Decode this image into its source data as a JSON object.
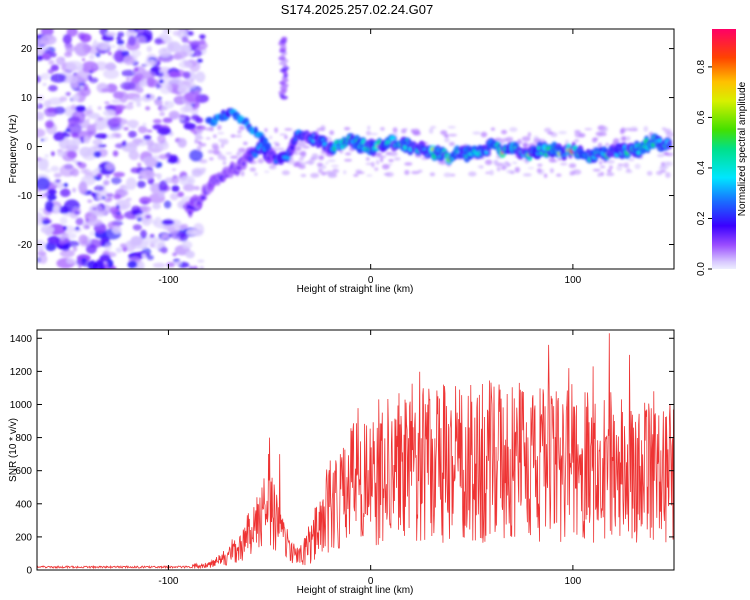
{
  "title": "S174.2025.257.02.24.G07",
  "spectrogram": {
    "type": "heatmap",
    "xlabel": "Height of straight line (km)",
    "ylabel": "Frequency (Hz)",
    "xlim": [
      -165,
      150
    ],
    "ylim": [
      -25,
      24
    ],
    "xticks": [
      -100,
      0,
      100
    ],
    "xtick_labels": [
      "-100",
      "0",
      "100"
    ],
    "yticks": [
      -20,
      -10,
      0,
      10,
      20
    ],
    "ytick_labels": [
      "-20",
      "-10",
      "0",
      "10",
      "20"
    ],
    "colorbar": {
      "label": "Normalized spectral amplitude",
      "range": [
        0,
        0.95
      ],
      "ticks": [
        0.0,
        0.2,
        0.4,
        0.6,
        0.8
      ],
      "tick_labels": [
        "0.0",
        "0.2",
        "0.4",
        "0.6",
        "0.8"
      ]
    },
    "ridge": [
      [
        -90,
        -13
      ],
      [
        -85,
        -11
      ],
      [
        -80,
        -8
      ],
      [
        -72,
        -6
      ],
      [
        -65,
        -4
      ],
      [
        -60,
        -2
      ],
      [
        -55,
        0
      ],
      [
        -50,
        -2
      ],
      [
        -45,
        -3
      ],
      [
        -40,
        -1
      ],
      [
        -35,
        3
      ],
      [
        -30,
        2
      ],
      [
        -25,
        1
      ],
      [
        -20,
        0
      ],
      [
        -10,
        1
      ],
      [
        0,
        0
      ],
      [
        10,
        1
      ],
      [
        20,
        0
      ],
      [
        25,
        0
      ],
      [
        30,
        -1
      ],
      [
        40,
        -2
      ],
      [
        50,
        -1
      ],
      [
        60,
        0
      ],
      [
        70,
        -1
      ],
      [
        80,
        -1
      ],
      [
        90,
        -1
      ],
      [
        100,
        -1
      ],
      [
        110,
        -2
      ],
      [
        120,
        -1
      ],
      [
        130,
        -1
      ],
      [
        140,
        1
      ],
      [
        148,
        0
      ]
    ],
    "upper_branch": [
      [
        -80,
        5
      ],
      [
        -75,
        6
      ],
      [
        -70,
        7
      ],
      [
        -65,
        6
      ],
      [
        -60,
        4
      ],
      [
        -55,
        2
      ],
      [
        -50,
        0
      ]
    ],
    "spike": {
      "x": -43,
      "y_range": [
        10,
        22
      ]
    }
  },
  "snr": {
    "type": "line",
    "xlabel": "Height of straight line (km)",
    "ylabel": "SNR (10 * v/v)",
    "xlim": [
      -165,
      150
    ],
    "ylim": [
      0,
      1450
    ],
    "xticks": [
      -100,
      0,
      100
    ],
    "xtick_labels": [
      "-100",
      "0",
      "100"
    ],
    "yticks": [
      0,
      200,
      400,
      600,
      800,
      1000,
      1200,
      1400
    ],
    "ytick_labels": [
      "0",
      "200",
      "400",
      "600",
      "800",
      "1000",
      "1200",
      "1400"
    ],
    "color": "#ee3333",
    "envelope": [
      [
        -165,
        20
      ],
      [
        -90,
        20
      ],
      [
        -80,
        30
      ],
      [
        -75,
        60
      ],
      [
        -70,
        90
      ],
      [
        -65,
        130
      ],
      [
        -60,
        200
      ],
      [
        -55,
        300
      ],
      [
        -50,
        400
      ],
      [
        -45,
        250
      ],
      [
        -40,
        120
      ],
      [
        -35,
        80
      ],
      [
        -30,
        150
      ],
      [
        -25,
        300
      ],
      [
        -20,
        380
      ],
      [
        -10,
        480
      ],
      [
        0,
        580
      ],
      [
        10,
        620
      ],
      [
        20,
        650
      ],
      [
        40,
        650
      ],
      [
        60,
        660
      ],
      [
        80,
        640
      ],
      [
        100,
        620
      ],
      [
        120,
        600
      ],
      [
        140,
        580
      ],
      [
        150,
        560
      ]
    ],
    "peaks": [
      [
        -50,
        800
      ],
      [
        -45,
        700
      ],
      [
        -15,
        700
      ],
      [
        20,
        900
      ],
      [
        30,
        850
      ],
      [
        60,
        1000
      ],
      [
        75,
        1080
      ],
      [
        88,
        1360
      ],
      [
        98,
        1220
      ],
      [
        110,
        1230
      ],
      [
        118,
        1430
      ],
      [
        128,
        1300
      ],
      [
        140,
        1080
      ],
      [
        148,
        1000
      ]
    ]
  }
}
